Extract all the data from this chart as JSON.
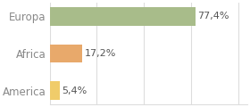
{
  "categories": [
    "America",
    "Africa",
    "Europa"
  ],
  "values": [
    5.4,
    17.2,
    77.4
  ],
  "bar_colors": [
    "#f0cc6a",
    "#e8a96b",
    "#a8bc8a"
  ],
  "labels": [
    "5,4%",
    "17,2%",
    "77,4%"
  ],
  "background_color": "#ffffff",
  "xlim": [
    0,
    105
  ],
  "bar_height": 0.5,
  "label_fontsize": 8,
  "tick_fontsize": 8.5,
  "tick_color": "#888888",
  "grid_color": "#dddddd"
}
